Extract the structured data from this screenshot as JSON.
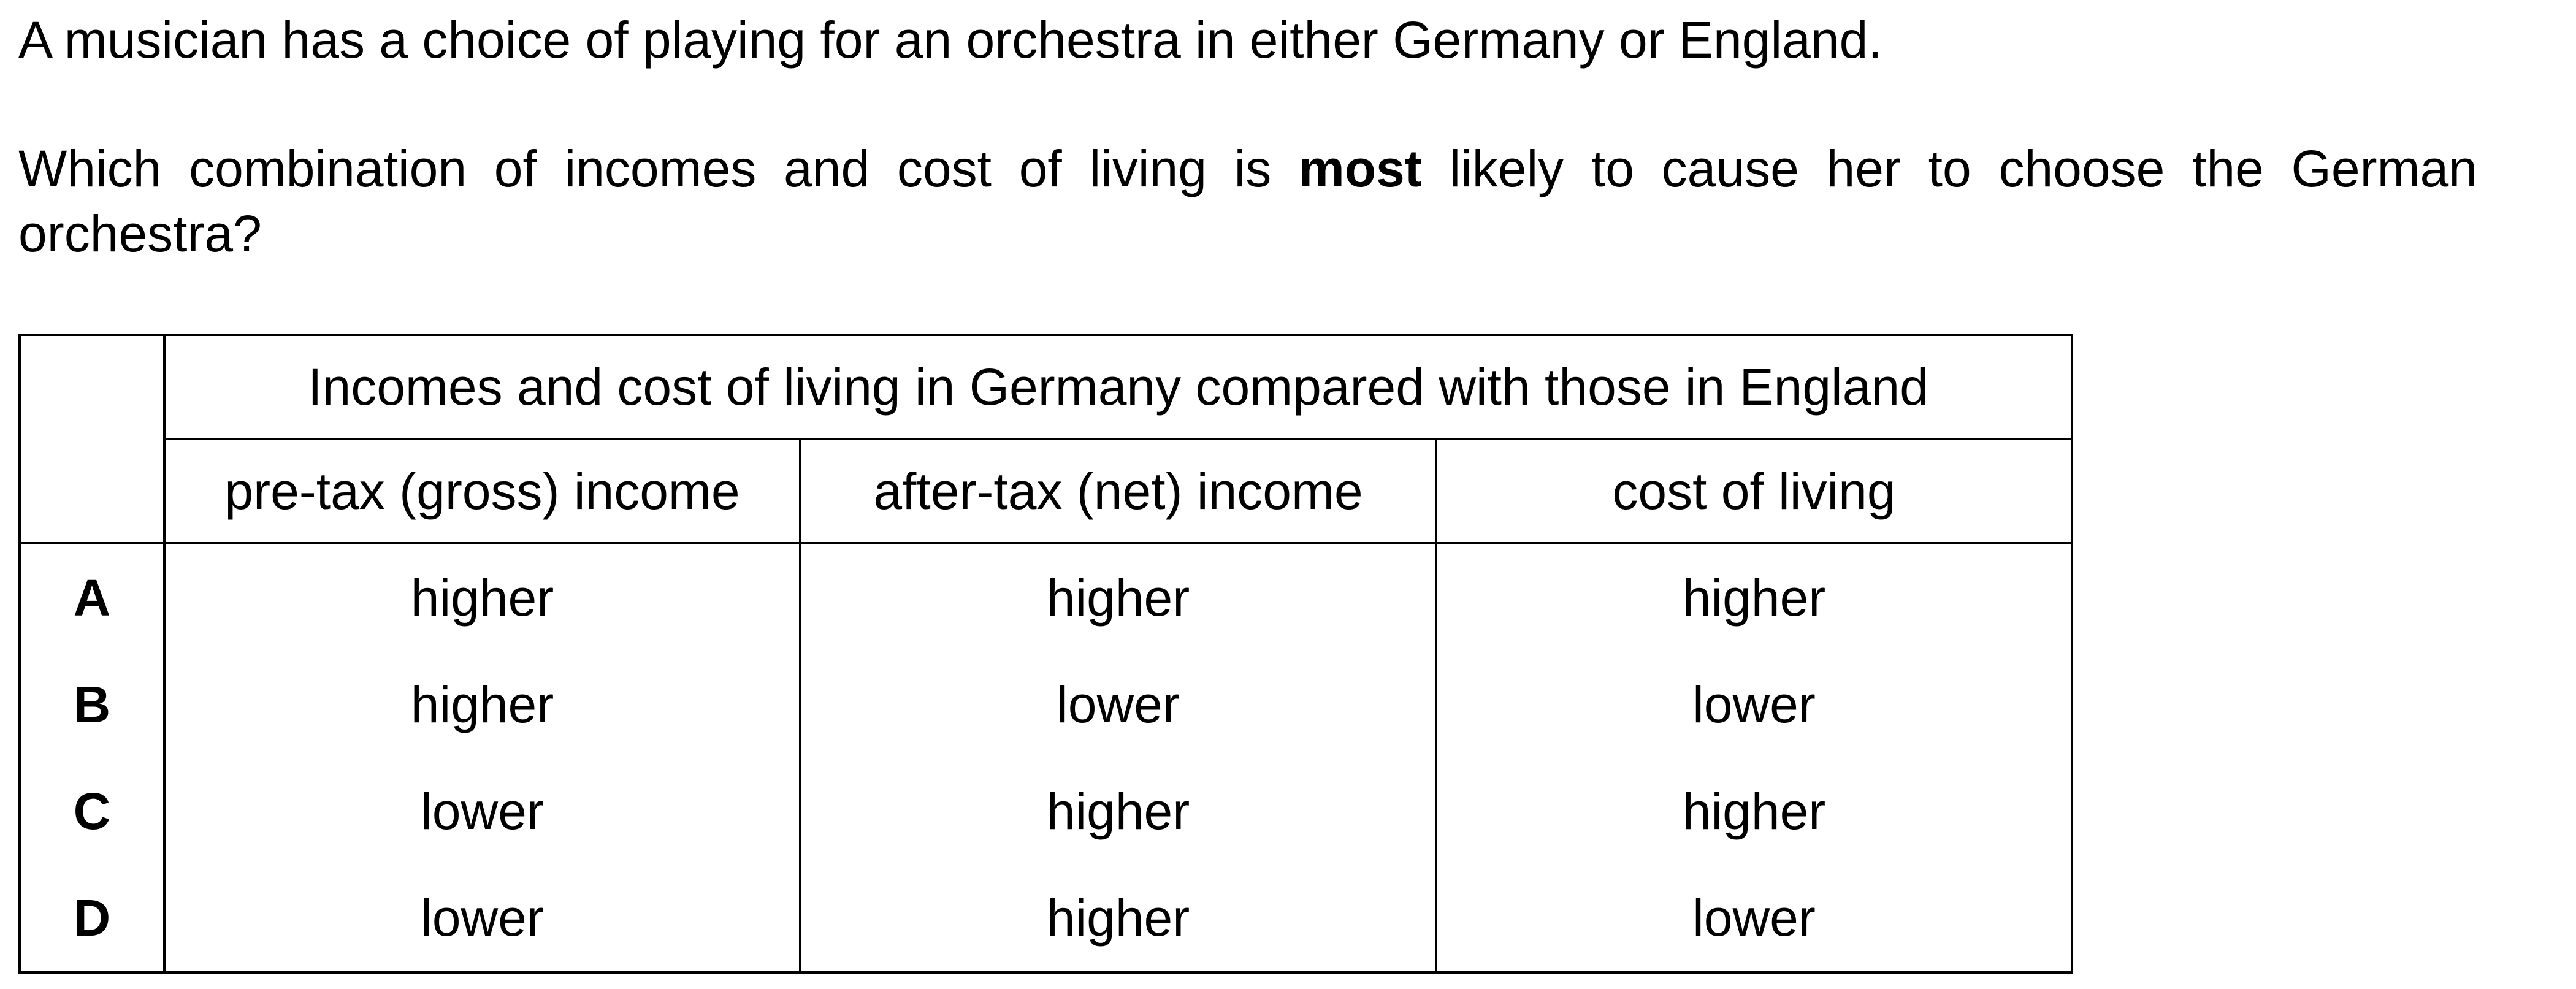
{
  "question": {
    "intro": "A musician has a choice of playing for an orchestra in either Germany or England.",
    "stem_before": "Which combination of incomes and cost of living is ",
    "stem_bold": "most",
    "stem_after": " likely to cause her to choose the German orchestra?"
  },
  "table": {
    "group_header": "Incomes and cost of living in Germany compared with those in England",
    "columns": [
      "pre-tax (gross) income",
      "after-tax (net) income",
      "cost of living"
    ],
    "rows": [
      {
        "key": "A",
        "values": [
          "higher",
          "higher",
          "higher"
        ]
      },
      {
        "key": "B",
        "values": [
          "higher",
          "lower",
          "lower"
        ]
      },
      {
        "key": "C",
        "values": [
          "lower",
          "higher",
          "higher"
        ]
      },
      {
        "key": "D",
        "values": [
          "lower",
          "higher",
          "lower"
        ]
      }
    ]
  }
}
